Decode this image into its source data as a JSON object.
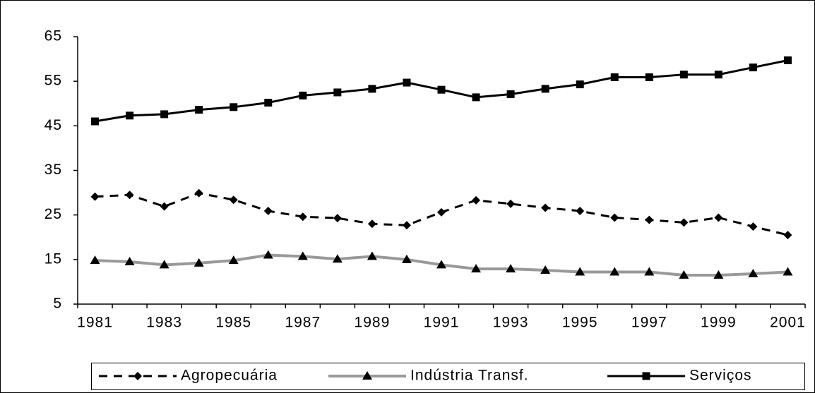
{
  "chart_data": {
    "type": "line",
    "categories": [
      "1981",
      null,
      "1983",
      null,
      "1985",
      null,
      "1987",
      null,
      "1989",
      null,
      "1991",
      null,
      "1993",
      null,
      "1995",
      null,
      "1997",
      null,
      "1999",
      null,
      "2001"
    ],
    "series": [
      {
        "name": "Agropecuária",
        "color": "#000000",
        "dash": "dashed",
        "marker": "diamond",
        "values": [
          29.1,
          29.5,
          26.9,
          29.9,
          28.4,
          25.9,
          24.6,
          24.3,
          23.0,
          22.7,
          25.6,
          28.3,
          27.5,
          26.6,
          25.9,
          24.4,
          23.9,
          23.3,
          24.4,
          22.4,
          20.5
        ]
      },
      {
        "name": "Indústria Transf.",
        "color": "#999999",
        "dash": "solid",
        "marker": "triangle",
        "values": [
          14.8,
          14.5,
          13.8,
          14.2,
          14.8,
          16.0,
          15.7,
          15.1,
          15.7,
          15.0,
          13.8,
          12.9,
          12.9,
          12.6,
          12.2,
          12.2,
          12.2,
          11.5,
          11.5,
          11.8,
          12.2
        ]
      },
      {
        "name": "Serviços",
        "color": "#000000",
        "dash": "solid",
        "marker": "square",
        "values": [
          46.0,
          47.3,
          47.6,
          48.6,
          49.2,
          50.2,
          51.8,
          52.5,
          53.3,
          54.7,
          53.1,
          51.4,
          52.1,
          53.3,
          54.3,
          55.9,
          55.9,
          56.5,
          56.5,
          58.1,
          59.7
        ]
      }
    ],
    "ylim": [
      5,
      65
    ],
    "yticks": [
      5,
      15,
      25,
      35,
      45,
      55,
      65
    ],
    "grid": false,
    "legend": "bottom"
  }
}
